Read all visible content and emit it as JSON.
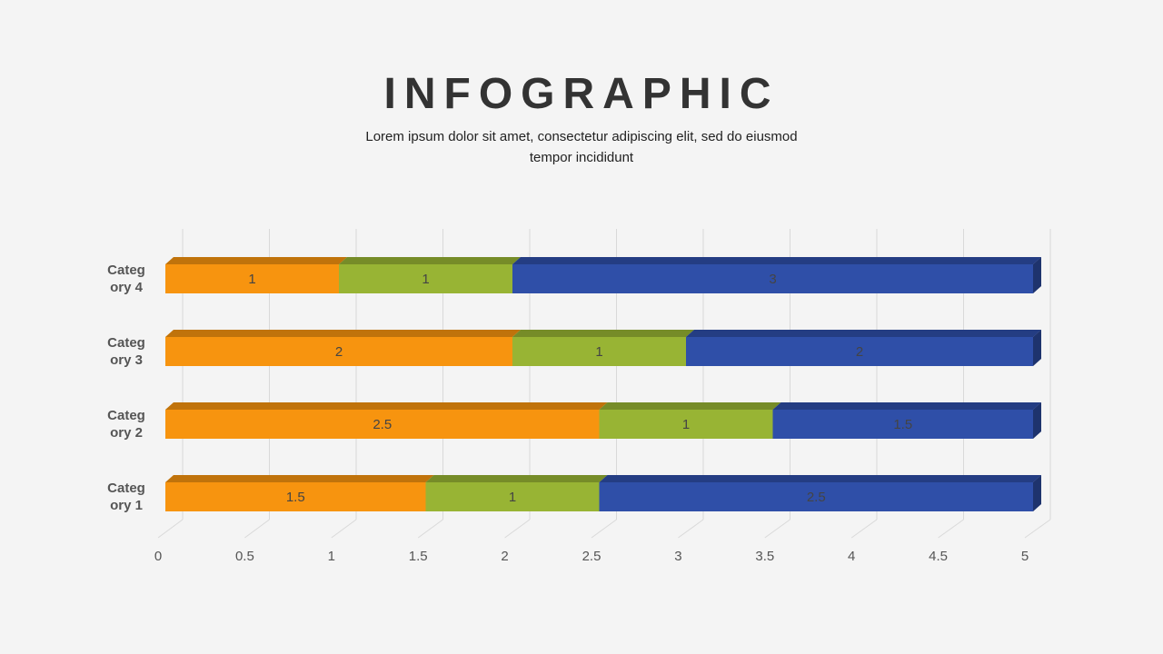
{
  "chart_data": {
    "type": "bar",
    "orientation": "horizontal",
    "stacked": true,
    "title": "INFOGRAPHIC",
    "subtitle": "Lorem ipsum dolor sit amet, consectetur adipiscing elit, sed do eiusmod tempor incididunt",
    "categories": [
      "Category 1",
      "Category 2",
      "Category 3",
      "Category 4"
    ],
    "series": [
      {
        "color": "#f7940f",
        "values": [
          1.5,
          2.5,
          2,
          1
        ]
      },
      {
        "color": "#98b434",
        "values": [
          1,
          1,
          1,
          1
        ]
      },
      {
        "color": "#2f4fa8",
        "values": [
          2.5,
          1.5,
          2,
          3
        ]
      }
    ],
    "xlim": [
      0,
      5
    ],
    "xticks": [
      0,
      0.5,
      1,
      1.5,
      2,
      2.5,
      3,
      3.5,
      4,
      4.5,
      5
    ],
    "grid": true
  }
}
